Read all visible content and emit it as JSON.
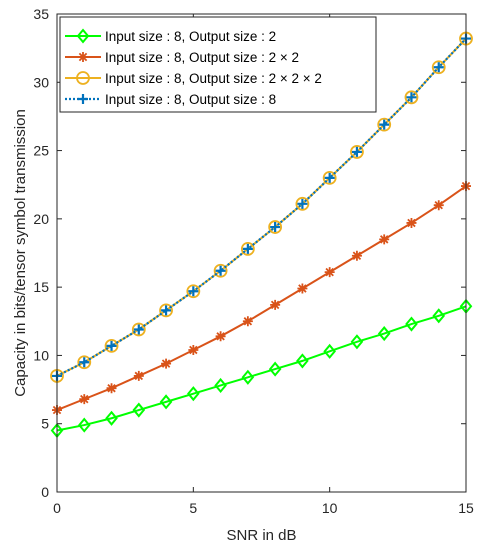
{
  "chart_data": {
    "type": "line",
    "title": "",
    "xlabel": "SNR in dB",
    "ylabel": "Capacity in bits/tensor symbol transmission",
    "xlim": [
      0,
      15
    ],
    "ylim": [
      0,
      35
    ],
    "xticks": [
      0,
      5,
      10,
      15
    ],
    "yticks": [
      0,
      5,
      10,
      15,
      20,
      25,
      30,
      35
    ],
    "grid": false,
    "legend_position": "top-left",
    "x": [
      0,
      1,
      2,
      3,
      4,
      5,
      6,
      7,
      8,
      9,
      10,
      11,
      12,
      13,
      14,
      15
    ],
    "series": [
      {
        "name": "Input size : 8, Output size : 2",
        "color": "#00ff00",
        "marker": "diamond",
        "line_style": "solid",
        "values": [
          4.5,
          4.9,
          5.4,
          6.0,
          6.6,
          7.2,
          7.8,
          8.4,
          9.0,
          9.6,
          10.3,
          11.0,
          11.6,
          12.3,
          12.9,
          13.6
        ]
      },
      {
        "name": "Input size : 8, Output size : 2 × 2",
        "color": "#d95319",
        "marker": "asterisk",
        "line_style": "solid",
        "values": [
          6.0,
          6.8,
          7.6,
          8.5,
          9.4,
          10.4,
          11.4,
          12.5,
          13.7,
          14.9,
          16.1,
          17.3,
          18.5,
          19.7,
          21.0,
          22.4
        ]
      },
      {
        "name": "Input size : 8, Output size : 2 × 2 × 2",
        "color": "#edb120",
        "marker": "circle",
        "line_style": "solid",
        "values": [
          8.5,
          9.5,
          10.7,
          11.9,
          13.3,
          14.7,
          16.2,
          17.8,
          19.4,
          21.1,
          23.0,
          24.9,
          26.9,
          28.9,
          31.1,
          33.2
        ]
      },
      {
        "name": "Input size : 8, Output size : 8",
        "color": "#0072bd",
        "marker": "plus",
        "line_style": "dotted",
        "values": [
          8.5,
          9.5,
          10.7,
          11.9,
          13.3,
          14.7,
          16.2,
          17.8,
          19.4,
          21.1,
          23.0,
          24.9,
          26.9,
          28.9,
          31.1,
          33.2
        ]
      }
    ]
  }
}
